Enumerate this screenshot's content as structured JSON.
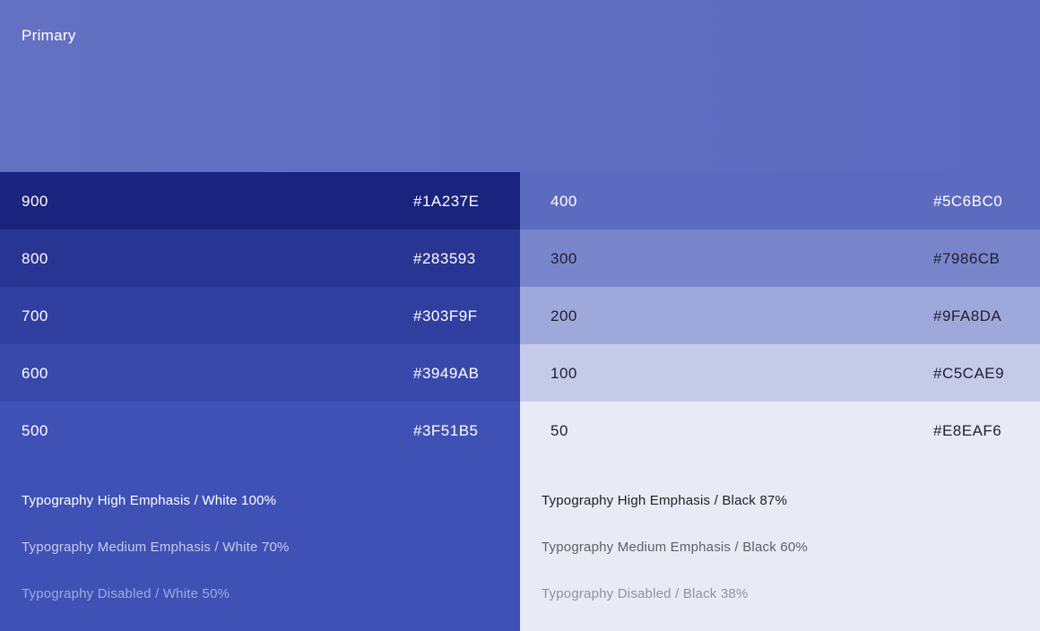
{
  "header": {
    "title": "Primary"
  },
  "left": {
    "swatches": [
      {
        "shade": "900",
        "hex": "#1A237E",
        "bg": "#1a237e",
        "fg": "#ffffff"
      },
      {
        "shade": "800",
        "hex": "#283593",
        "bg": "#283593",
        "fg": "#ffffff"
      },
      {
        "shade": "700",
        "hex": "#303F9F",
        "bg": "#303f9f",
        "fg": "#ffffff"
      },
      {
        "shade": "600",
        "hex": "#3949AB",
        "bg": "#3949ab",
        "fg": "#ffffff"
      },
      {
        "shade": "500",
        "hex": "#3F51B5",
        "bg": "#3f51b5",
        "fg": "#ffffff"
      }
    ],
    "typography": {
      "bg": "#3f51b5",
      "high": "Typography High Emphasis / White 100%",
      "medium": "Typography Medium Emphasis / White 70%",
      "disabled": "Typography Disabled / White 50%"
    }
  },
  "right": {
    "swatches": [
      {
        "shade": "400",
        "hex": "#5C6BC0",
        "bg": "#5c6bc0",
        "fg": "#ffffff"
      },
      {
        "shade": "300",
        "hex": "#7986CB",
        "bg": "#7986cb",
        "fg": "#1f1f2e"
      },
      {
        "shade": "200",
        "hex": "#9FA8DA",
        "bg": "#9fa8da",
        "fg": "#1f1f2e"
      },
      {
        "shade": "100",
        "hex": "#C5CAE9",
        "bg": "#c5cae9",
        "fg": "#1f1f2e"
      },
      {
        "shade": "50",
        "hex": "#E8EAF6",
        "bg": "#e8eaf6",
        "fg": "#1f1f2e"
      }
    ],
    "typography": {
      "bg": "#e8eaf6",
      "high": "Typography High Emphasis / Black 87%",
      "medium": "Typography Medium Emphasis / Black 60%",
      "disabled": "Typography Disabled / Black 38%"
    }
  },
  "colors": {
    "white_high": "rgba(255,255,255,1)",
    "white_medium": "rgba(255,255,255,0.7)",
    "white_disabled": "rgba(255,255,255,0.5)",
    "black_high": "rgba(0,0,0,0.87)",
    "black_medium": "rgba(0,0,0,0.6)",
    "black_disabled": "rgba(0,0,0,0.38)"
  }
}
